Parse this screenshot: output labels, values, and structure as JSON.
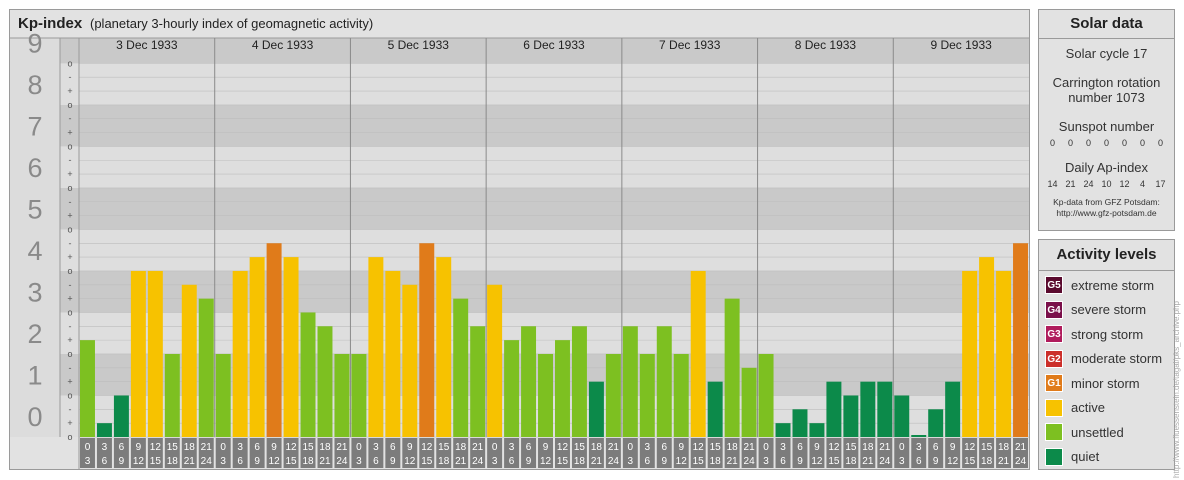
{
  "header": {
    "title": "Kp-index",
    "subtitle": "(planetary 3-hourly index of geomagnetic activity)"
  },
  "chart_data": {
    "type": "bar",
    "y_levels": [
      "0",
      "1",
      "2",
      "3",
      "4",
      "5",
      "6",
      "7",
      "8",
      "9"
    ],
    "ylim": [
      0,
      9
    ],
    "sub_ticks": [
      "+",
      "o",
      "-"
    ],
    "days": [
      "3 Dec 1933",
      "4 Dec 1933",
      "5 Dec 1933",
      "6 Dec 1933",
      "7 Dec 1933",
      "8 Dec 1933",
      "9 Dec 1933"
    ],
    "hour_starts": [
      "0",
      "3",
      "6",
      "9",
      "12",
      "15",
      "18",
      "21"
    ],
    "hour_ends": [
      "3",
      "6",
      "9",
      "12",
      "15",
      "18",
      "21",
      "24"
    ],
    "values": [
      [
        2.333,
        0.333,
        1.0,
        4.0,
        4.0,
        2.0,
        3.667,
        3.333
      ],
      [
        2.0,
        4.0,
        4.333,
        4.667,
        4.333,
        3.0,
        2.667,
        2.0
      ],
      [
        2.0,
        4.333,
        4.0,
        3.667,
        4.667,
        4.333,
        3.333,
        2.667
      ],
      [
        3.667,
        2.333,
        2.667,
        2.0,
        2.333,
        2.667,
        1.333,
        2.0
      ],
      [
        2.667,
        2.0,
        2.667,
        2.0,
        4.0,
        1.333,
        3.333,
        1.667
      ],
      [
        2.0,
        0.333,
        0.667,
        0.333,
        1.333,
        1.0,
        1.333,
        1.333
      ],
      [
        1.0,
        0.0,
        0.667,
        1.333,
        4.0,
        4.333,
        4.0,
        4.667
      ]
    ],
    "grid": true
  },
  "solar": {
    "title": "Solar data",
    "cycle": "Solar cycle 17",
    "carrington_line1": "Carrington rotation",
    "carrington_line2": "number 1073",
    "sunspot_label": "Sunspot number",
    "sunspot_values": [
      "0",
      "0",
      "0",
      "0",
      "0",
      "0",
      "0"
    ],
    "ap_label": "Daily Ap-index",
    "ap_values": [
      "14",
      "21",
      "24",
      "10",
      "12",
      "4",
      "17"
    ],
    "credit_line1": "Kp-data from GFZ Potsdam:",
    "credit_line2": "http://www.gfz-potsdam.de"
  },
  "legend": {
    "title": "Activity levels",
    "items": [
      {
        "badge": "G5",
        "label": "extreme storm",
        "color": "#5a0a2e"
      },
      {
        "badge": "G4",
        "label": "severe storm",
        "color": "#7a0f4a"
      },
      {
        "badge": "G3",
        "label": "strong storm",
        "color": "#b01c5c"
      },
      {
        "badge": "G2",
        "label": "moderate storm",
        "color": "#cc2f2a"
      },
      {
        "badge": "G1",
        "label": "minor storm",
        "color": "#e07b1a"
      },
      {
        "badge": "",
        "label": "active",
        "color": "#f7c200"
      },
      {
        "badge": "",
        "label": "unsettled",
        "color": "#7dc021"
      },
      {
        "badge": "",
        "label": "quiet",
        "color": "#0c8a4a"
      }
    ]
  },
  "colors": {
    "quiet": "#0c8a4a",
    "unsettled": "#7dc021",
    "active": "#f7c200",
    "minor_storm": "#e07b1a",
    "band_dark": "#c9c9c9",
    "band_light": "#dedede",
    "label_col": "#8a8a8a"
  },
  "watermark": "http://www.fluessenstein.de/tagal/pks_archive.php"
}
